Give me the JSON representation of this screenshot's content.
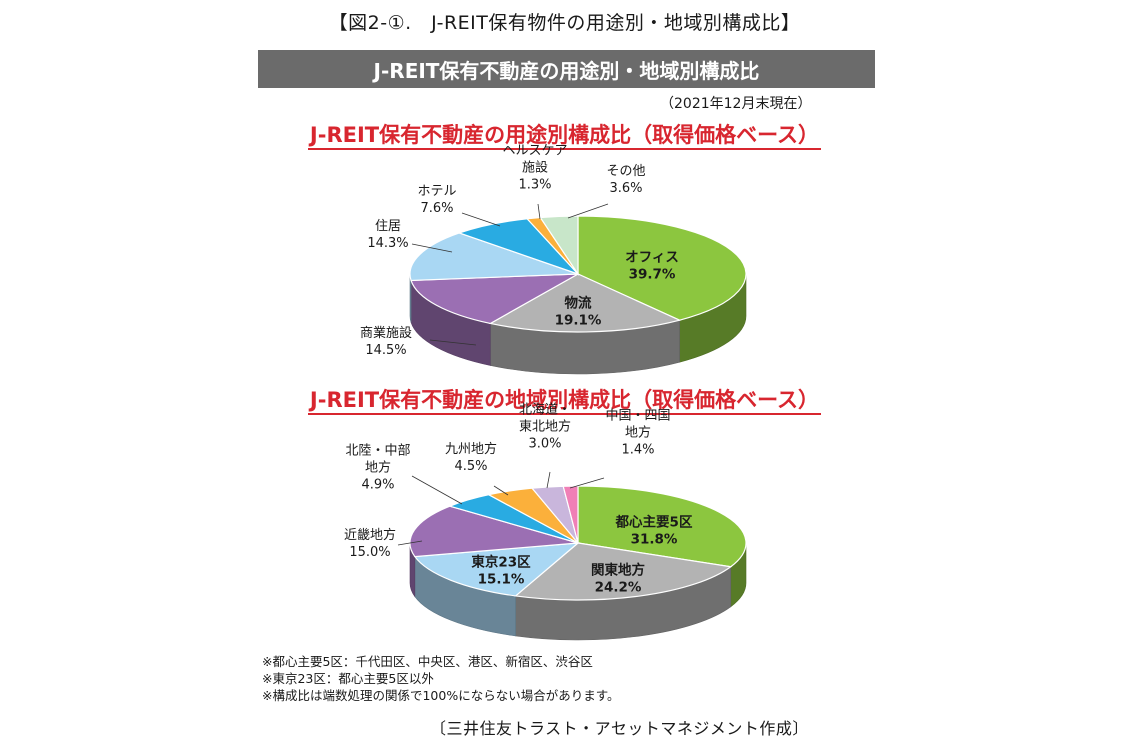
{
  "figure_title": "【図2-①.　J-REIT保有物件の用途別・地域別構成比】",
  "banner": "J-REIT保有不動産の用途別・地域別構成比",
  "as_of": "（2021年12月末現在）",
  "notes": [
    "※都心主要5区：千代田区、中央区、港区、新宿区、渋谷区",
    "※東京23区：都心主要5区以外",
    "※構成比は端数処理の関係で100%にならない場合があります。"
  ],
  "source": "〔三井住友トラスト・アセットマネジメント作成〕",
  "chart_data": [
    {
      "type": "pie",
      "title": "J-REIT保有不動産の用途別構成比（取得価格ベース）",
      "categories": [
        "オフィス",
        "物流",
        "商業施設",
        "住居",
        "ホテル",
        "ヘルスケア施設",
        "その他"
      ],
      "values": [
        39.7,
        19.1,
        14.5,
        14.3,
        7.6,
        1.3,
        3.6
      ],
      "labels": [
        "39.7%",
        "19.1%",
        "14.5%",
        "14.3%",
        "7.6%",
        "1.3%",
        "3.6%"
      ],
      "colors": [
        "#8cc63f",
        "#b3b3b3",
        "#9b6fb3",
        "#a9d7f3",
        "#29abe2",
        "#fbb03b",
        "#c8e6c9"
      ]
    },
    {
      "type": "pie",
      "title": "J-REIT保有不動産の地域別構成比（取得価格ベース）",
      "categories": [
        "都心主要5区",
        "関東地方",
        "東京23区",
        "近畿地方",
        "北陸・中部地方",
        "九州地方",
        "北海道・東北地方",
        "中国・四国地方"
      ],
      "values": [
        31.8,
        24.2,
        15.1,
        15.0,
        4.9,
        4.5,
        3.0,
        1.4
      ],
      "labels": [
        "31.8%",
        "24.2%",
        "15.1%",
        "15.0%",
        "4.9%",
        "4.5%",
        "3.0%",
        "1.4%"
      ],
      "colors": [
        "#8cc63f",
        "#b3b3b3",
        "#a9d7f3",
        "#9b6fb3",
        "#29abe2",
        "#fbb03b",
        "#c9b6dc",
        "#f07fb6"
      ]
    }
  ]
}
